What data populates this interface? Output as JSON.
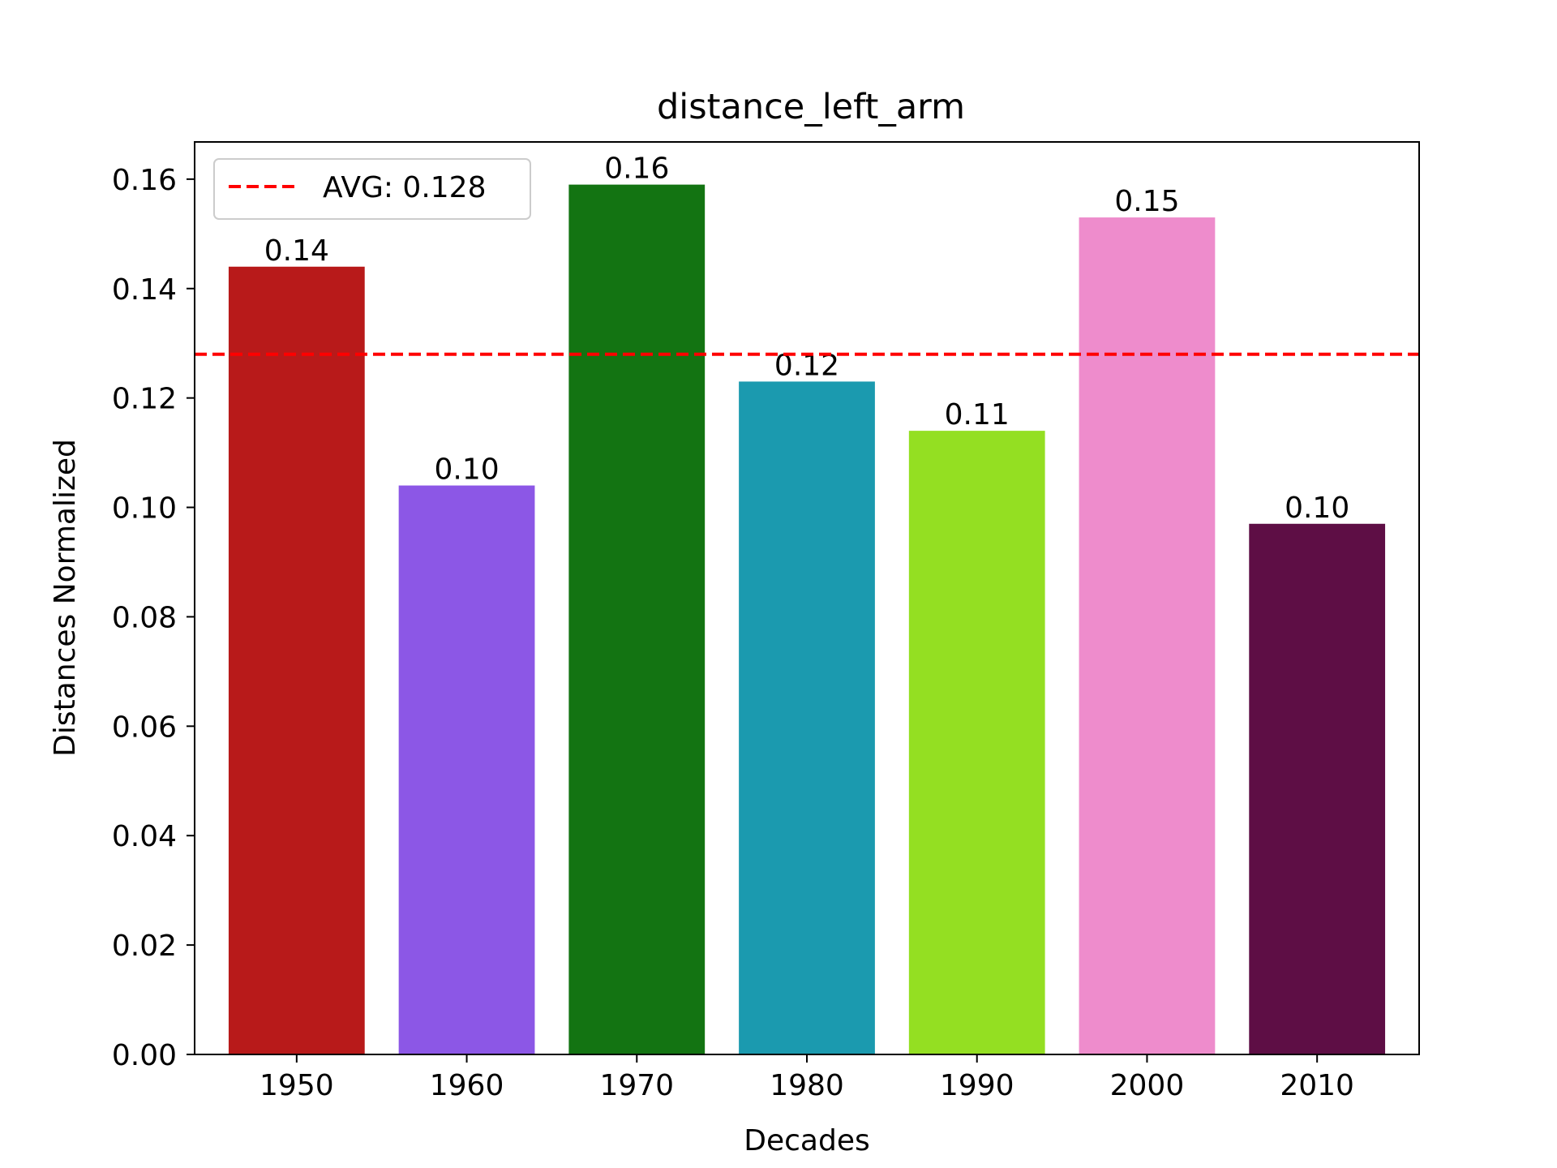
{
  "chart_data": {
    "type": "bar",
    "title": "distance_left_arm",
    "xlabel": "Decades",
    "ylabel": "Distances Normalized",
    "categories": [
      "1950",
      "1960",
      "1970",
      "1980",
      "1990",
      "2000",
      "2010"
    ],
    "values": [
      0.144,
      0.104,
      0.159,
      0.123,
      0.114,
      0.153,
      0.097
    ],
    "data_labels": [
      "0.14",
      "0.10",
      "0.16",
      "0.12",
      "0.11",
      "0.15",
      "0.10"
    ],
    "colors": [
      "#b81a1a",
      "#8c57e6",
      "#137412",
      "#1b9aaf",
      "#94df22",
      "#ee8ccc",
      "#5e0e45"
    ],
    "ylim": [
      0,
      0.1668
    ],
    "yticks": [
      "0.00",
      "0.02",
      "0.04",
      "0.06",
      "0.08",
      "0.10",
      "0.12",
      "0.14",
      "0.16"
    ],
    "ytick_values": [
      0,
      0.02,
      0.04,
      0.06,
      0.08,
      0.1,
      0.12,
      0.14,
      0.16
    ],
    "average": {
      "value": 0.128,
      "label": "AVG: 0.128",
      "color": "#ff0000",
      "style": "dashed"
    },
    "legend": {
      "position": "top-left"
    },
    "grid": false
  }
}
